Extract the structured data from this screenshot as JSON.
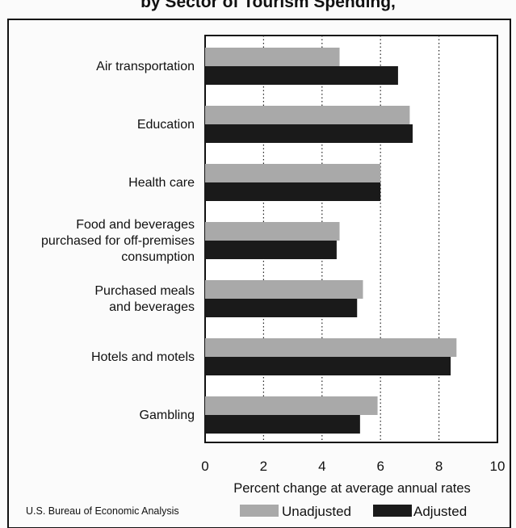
{
  "title": "by Sector of Tourism Spending,",
  "source": "U.S. Bureau of Economic Analysis",
  "colors": {
    "unadjusted": "#a9a9a9",
    "adjusted": "#1a1a1a"
  },
  "chart_data": {
    "type": "bar",
    "orientation": "horizontal",
    "categories": [
      [
        "Air transportation"
      ],
      [
        "Education"
      ],
      [
        "Health care"
      ],
      [
        "Food and beverages",
        "purchased for off-premises",
        "consumption"
      ],
      [
        "Purchased meals",
        "and beverages"
      ],
      [
        "Hotels and motels"
      ],
      [
        "Gambling"
      ]
    ],
    "series": [
      {
        "name": "Unadjusted",
        "values": [
          4.6,
          7.0,
          6.0,
          4.6,
          5.4,
          8.6,
          5.9
        ]
      },
      {
        "name": "Adjusted",
        "values": [
          6.6,
          7.1,
          6.0,
          4.5,
          5.2,
          8.4,
          5.3
        ]
      }
    ],
    "xlabel": "Percent change at average annual rates",
    "ylabel": "",
    "xlim": [
      0,
      10
    ],
    "xticks": [
      "0",
      "2",
      "4",
      "6",
      "8",
      "10"
    ],
    "grid": "vertical dotted lines at 2, 4, 6, 8",
    "legend": "bottom-right"
  }
}
